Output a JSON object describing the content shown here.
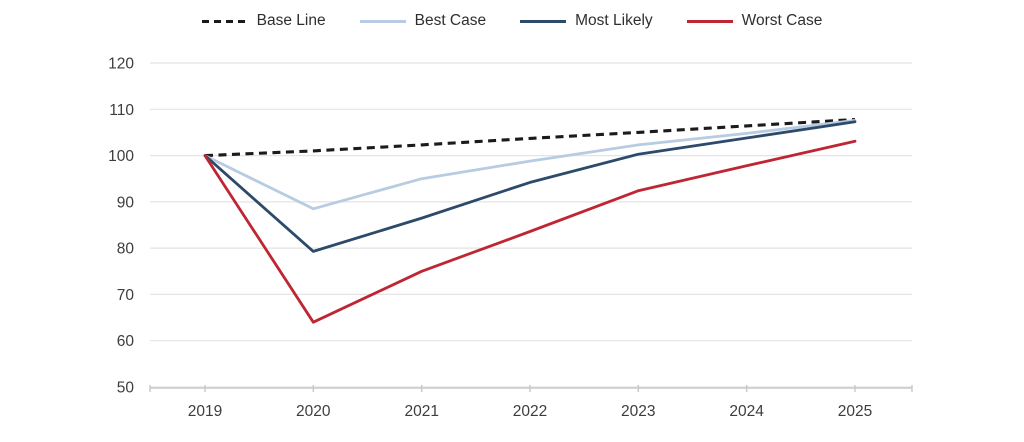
{
  "chart_data": {
    "type": "line",
    "title": "",
    "xlabel": "",
    "ylabel": "",
    "categories": [
      "2019",
      "2020",
      "2021",
      "2022",
      "2023",
      "2024",
      "2025"
    ],
    "series": [
      {
        "name": "Base Line",
        "color": "#1b1b1b",
        "style": "dashed",
        "values": [
          100,
          101,
          102.3,
          103.7,
          105,
          106.4,
          107.8
        ]
      },
      {
        "name": "Best Case",
        "color": "#b7cbe2",
        "style": "solid",
        "values": [
          100,
          88.5,
          95,
          98.8,
          102.3,
          104.8,
          107.6
        ]
      },
      {
        "name": "Most Likely",
        "color": "#2d4a6b",
        "style": "solid",
        "values": [
          100,
          79.3,
          86.5,
          94.2,
          100.3,
          103.8,
          107.3
        ]
      },
      {
        "name": "Worst Case",
        "color": "#be2633",
        "style": "solid",
        "values": [
          100,
          64,
          75,
          83.6,
          92.4,
          97.8,
          103.1
        ]
      }
    ],
    "ylim": [
      50,
      120
    ],
    "y_ticks": [
      120,
      110,
      100,
      90,
      80,
      70,
      60,
      50
    ],
    "grid": "horizontal",
    "legend_position": "top",
    "gridline_color": "#e4e4e4",
    "axis_color": "#c8c8c8",
    "tick_label_color": "#3d3d3d",
    "background": "#ffffff"
  }
}
